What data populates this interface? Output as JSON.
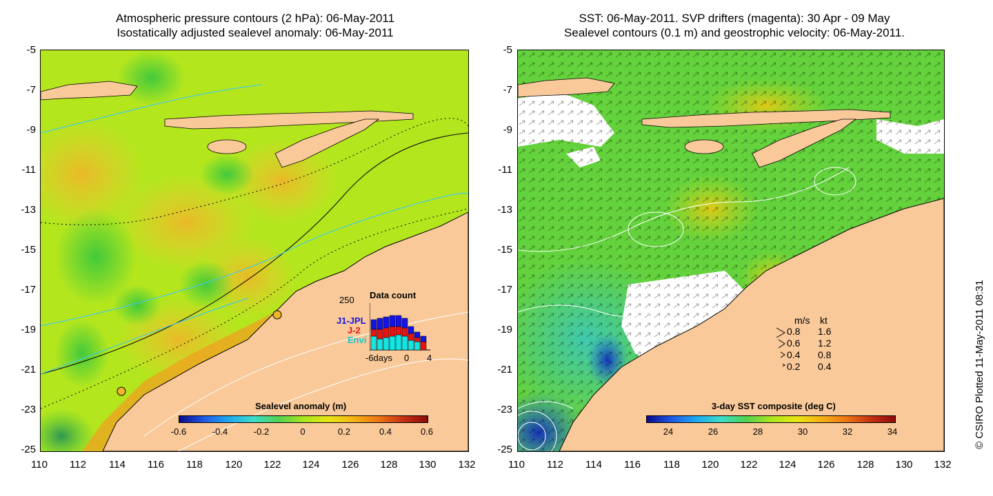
{
  "left_panel": {
    "title_line1": "Atmospheric pressure contours (2 hPa): 06-May-2011",
    "title_line2": "Isostatically adjusted sealevel anomaly: 06-May-2011",
    "colorbar": {
      "label": "Sealevel anomaly (m)",
      "ticks": [
        "-0.6",
        "-0.4",
        "-0.2",
        "0",
        "0.2",
        "0.4",
        "0.6"
      ],
      "colors": [
        "#0a0a8c",
        "#1e5ae6",
        "#1eaaf0",
        "#3cdcc8",
        "#50d250",
        "#aae61e",
        "#e6e614",
        "#f5b414",
        "#ee7814",
        "#c83214",
        "#8c0a0a"
      ]
    },
    "data_count": {
      "title": "Data count",
      "max_label": "250",
      "series": [
        {
          "name": "J1-JPL",
          "color": "#1414e6"
        },
        {
          "name": "J-2",
          "color": "#e61414"
        },
        {
          "name": "Envi",
          "color": "#14e6e6"
        }
      ],
      "x_labels": [
        "-6days",
        "0",
        "4"
      ]
    }
  },
  "right_panel": {
    "title_line1": "SST: 06-May-2011. SVP drifters (magenta): 30 Apr - 09 May",
    "title_line2": "Sealevel contours (0.1 m) and geostrophic velocity: 06-May-2011.",
    "colorbar": {
      "label": "3-day SST composite (deg C)",
      "ticks": [
        "24",
        "26",
        "28",
        "30",
        "32",
        "34"
      ],
      "colors": [
        "#0a0a8c",
        "#1e5ae6",
        "#1eaaf0",
        "#3cdcc8",
        "#50d250",
        "#aae61e",
        "#e6e614",
        "#f5b414",
        "#ee7814",
        "#c83214",
        "#8c0a0a"
      ]
    },
    "velocity_legend": {
      "header_ms": "m/s",
      "header_kt": "kt",
      "rows": [
        {
          "ms": "0.8",
          "kt": "1.6",
          "magnitude": 0.8
        },
        {
          "ms": "0.6",
          "kt": "1.2",
          "magnitude": 0.6
        },
        {
          "ms": "0.4",
          "kt": "0.8",
          "magnitude": 0.4
        },
        {
          "ms": "0.2",
          "kt": "0.4",
          "magnitude": 0.2
        }
      ]
    }
  },
  "axes": {
    "lat_ticks": [
      "-5",
      "-7",
      "-9",
      "-11",
      "-13",
      "-15",
      "-17",
      "-19",
      "-21",
      "-23",
      "-25"
    ],
    "lon_ticks": [
      "110",
      "112",
      "114",
      "116",
      "118",
      "120",
      "122",
      "124",
      "126",
      "128",
      "130",
      "132"
    ]
  },
  "colors": {
    "land": "#f9c99a",
    "ocean_base": "#b4e61e",
    "ssh_positive": "#f0c832",
    "ssh_negative": "#3cc83c",
    "sst_base": "#64d23c",
    "cloud": "#ffffff"
  },
  "stamp": "© CSIRO Plotted 11-May-2011 08:31"
}
